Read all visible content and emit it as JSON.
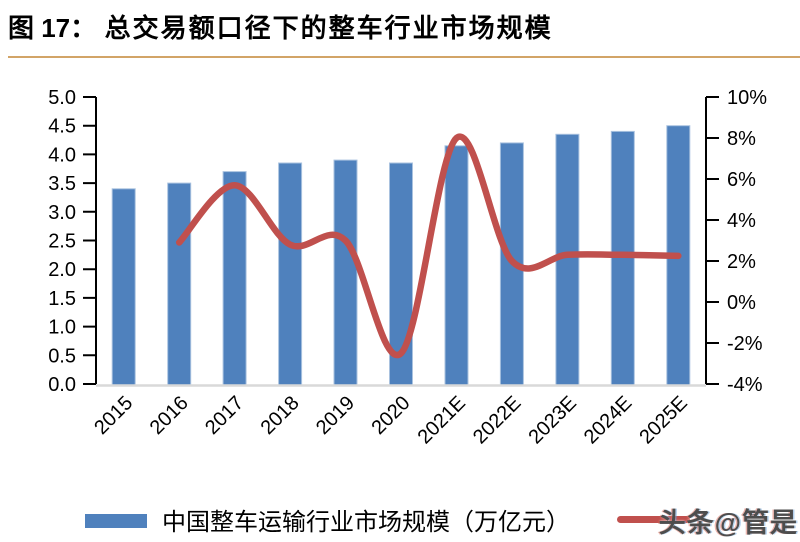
{
  "figure": {
    "label": "图 17：",
    "title": "总交易额口径下的整车行业市场规模"
  },
  "legend": {
    "bar_label": "中国整车运输行业市场规模（万亿元）"
  },
  "watermark": "头条@管是",
  "colors": {
    "bar": "#4F81BD",
    "bar_edge": "#A9C2DF",
    "line": "#C0504D",
    "axis": "#000000",
    "baseline": "#D9D9D9",
    "title_rule": "#D2A467",
    "watermark": "#4D4D4D"
  },
  "chart_data": {
    "type": "combo",
    "categories": [
      "2015",
      "2016",
      "2017",
      "2018",
      "2019",
      "2020",
      "2021E",
      "2022E",
      "2023E",
      "2024E",
      "2025E"
    ],
    "series": [
      {
        "name": "中国整车运输行业市场规模（万亿元）",
        "type": "bar",
        "axis": "left",
        "values": [
          3.4,
          3.5,
          3.7,
          3.85,
          3.9,
          3.85,
          4.15,
          4.2,
          4.35,
          4.4,
          4.5
        ]
      },
      {
        "name": "",
        "type": "line",
        "axis": "right",
        "values": [
          null,
          2.9,
          5.7,
          2.8,
          3.0,
          -2.5,
          8.0,
          2.0,
          2.3,
          2.3,
          2.25
        ]
      }
    ],
    "left_axis": {
      "min": 0,
      "max": 5,
      "ticks": [
        "5.0",
        "4.5",
        "4.0",
        "3.5",
        "3.0",
        "2.5",
        "2.0",
        "1.5",
        "1.0",
        "0.5",
        "0.0"
      ]
    },
    "right_axis": {
      "min": -4,
      "max": 10,
      "ticks": [
        "10%",
        "8%",
        "6%",
        "4%",
        "2%",
        "0%",
        "-2%",
        "-4%"
      ]
    },
    "grid": false,
    "legend_position": "bottom"
  }
}
